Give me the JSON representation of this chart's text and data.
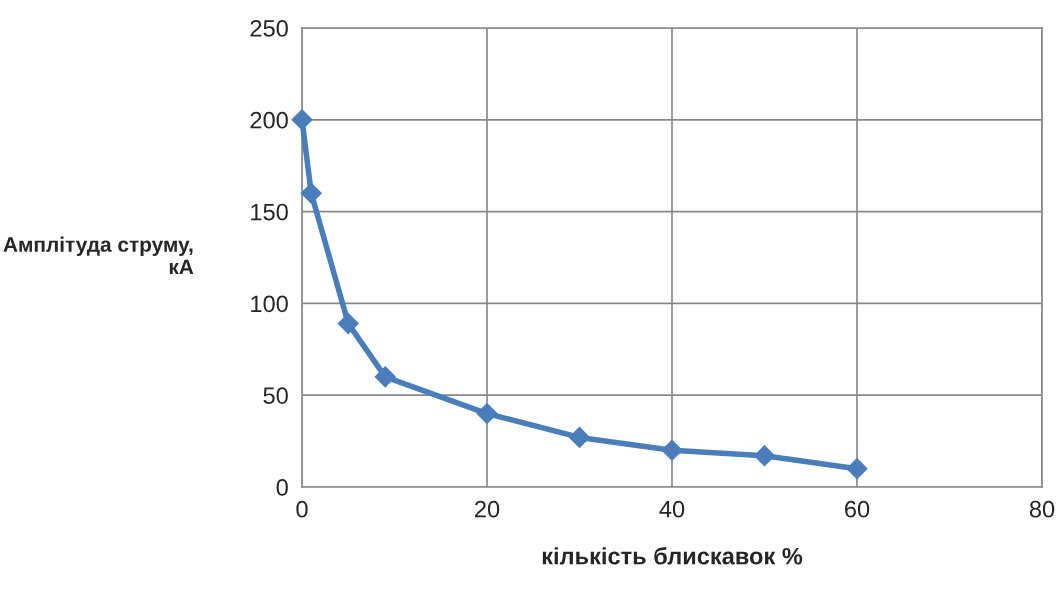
{
  "chart_data": {
    "type": "line",
    "xlabel": "кількість блискавок %",
    "ylabel": "Амплітуда струму,\nкА",
    "x": [
      0,
      1,
      5,
      9,
      20,
      30,
      40,
      50,
      60
    ],
    "series": [
      {
        "color": "#4a7ebb",
        "values": [
          200,
          160,
          89,
          60,
          40,
          27,
          20,
          17,
          10
        ]
      }
    ],
    "xlim": [
      0,
      80
    ],
    "xticks": [
      0,
      20,
      40,
      60,
      80
    ],
    "ylim": [
      0,
      250
    ],
    "yticks": [
      0,
      50,
      100,
      150,
      200,
      250
    ],
    "grid": true,
    "marker": "diamond",
    "line_style": "solid",
    "legend": false
  }
}
